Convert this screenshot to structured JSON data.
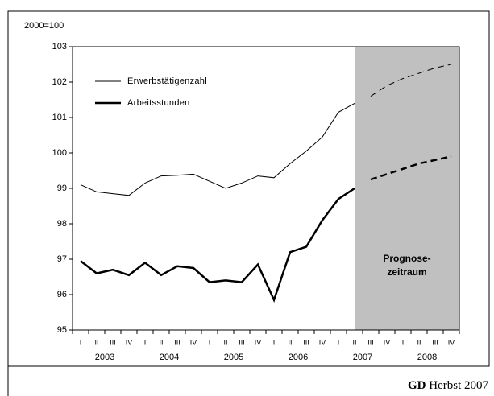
{
  "chart_data": {
    "type": "line",
    "y_unit_label": "2000=100",
    "categories": [
      "I",
      "II",
      "III",
      "IV",
      "I",
      "II",
      "III",
      "IV",
      "I",
      "II",
      "III",
      "IV",
      "I",
      "II",
      "III",
      "IV",
      "I",
      "II",
      "III",
      "IV",
      "I",
      "II",
      "III",
      "IV"
    ],
    "years": [
      "2003",
      "2004",
      "2005",
      "2006",
      "2007",
      "2008"
    ],
    "series": [
      {
        "name": "Erwerbstätigenzahl",
        "color": "#000000",
        "width": 1,
        "values": [
          99.1,
          98.9,
          98.85,
          98.8,
          99.15,
          99.35,
          99.37,
          99.4,
          99.2,
          99.0,
          99.15,
          99.35,
          99.3,
          99.7,
          100.05,
          100.45,
          101.15,
          101.4,
          101.6,
          101.9,
          102.1,
          102.25,
          102.4,
          102.5
        ]
      },
      {
        "name": "Arbeitsstunden",
        "color": "#000000",
        "width": 2.5,
        "values": [
          96.95,
          96.6,
          96.7,
          96.55,
          96.9,
          96.55,
          96.8,
          96.75,
          96.35,
          96.4,
          96.35,
          96.85,
          95.85,
          97.2,
          97.35,
          98.1,
          98.7,
          99.0,
          99.25,
          99.4,
          99.55,
          99.7,
          99.8,
          99.9
        ]
      }
    ],
    "forecast_from": 17,
    "forecast_color": "#c0c0c0",
    "forecast_label": [
      "Prognose-",
      "zeitraum"
    ],
    "ylim": [
      95,
      103
    ],
    "yticks": [
      95,
      96,
      97,
      98,
      99,
      100,
      101,
      102,
      103
    ],
    "source": {
      "bold": "GD",
      "text": "Herbst 2007"
    }
  }
}
